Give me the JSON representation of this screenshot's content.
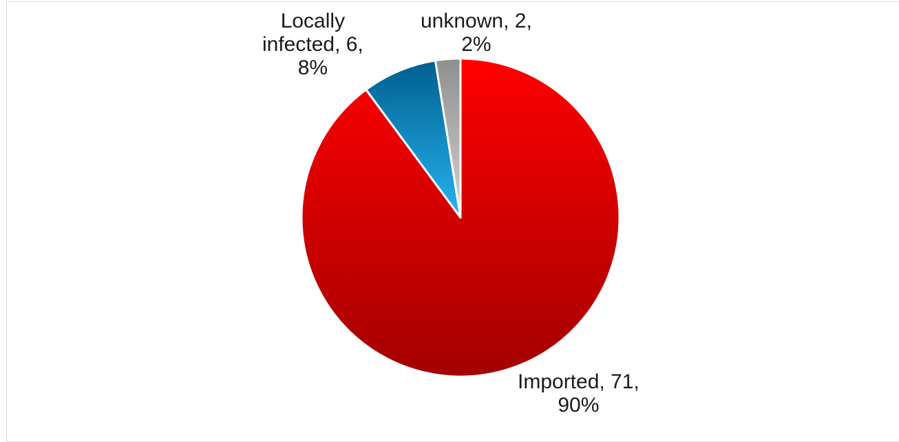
{
  "chart_data": {
    "type": "pie",
    "title": "",
    "slices": [
      {
        "label": "Imported",
        "value": 71,
        "percent": "90%",
        "color_top": "#ff0000",
        "color_bottom": "#a30000"
      },
      {
        "label": "Locally infected",
        "value": 6,
        "percent": "8%",
        "color_top": "#005f8f",
        "color_bottom": "#27b4f0"
      },
      {
        "label": "unknown",
        "value": 2,
        "percent": "2%",
        "color_top": "#8f8f8f",
        "color_bottom": "#d2d2d2"
      }
    ],
    "data_labels": {
      "imported": {
        "line1": "Imported, 71,",
        "line2": "90%"
      },
      "locally": {
        "line1": "Locally",
        "line2": "infected, 6,",
        "line3": "8%"
      },
      "unknown": {
        "line1": "unknown, 2,",
        "line2": "2%"
      }
    }
  }
}
